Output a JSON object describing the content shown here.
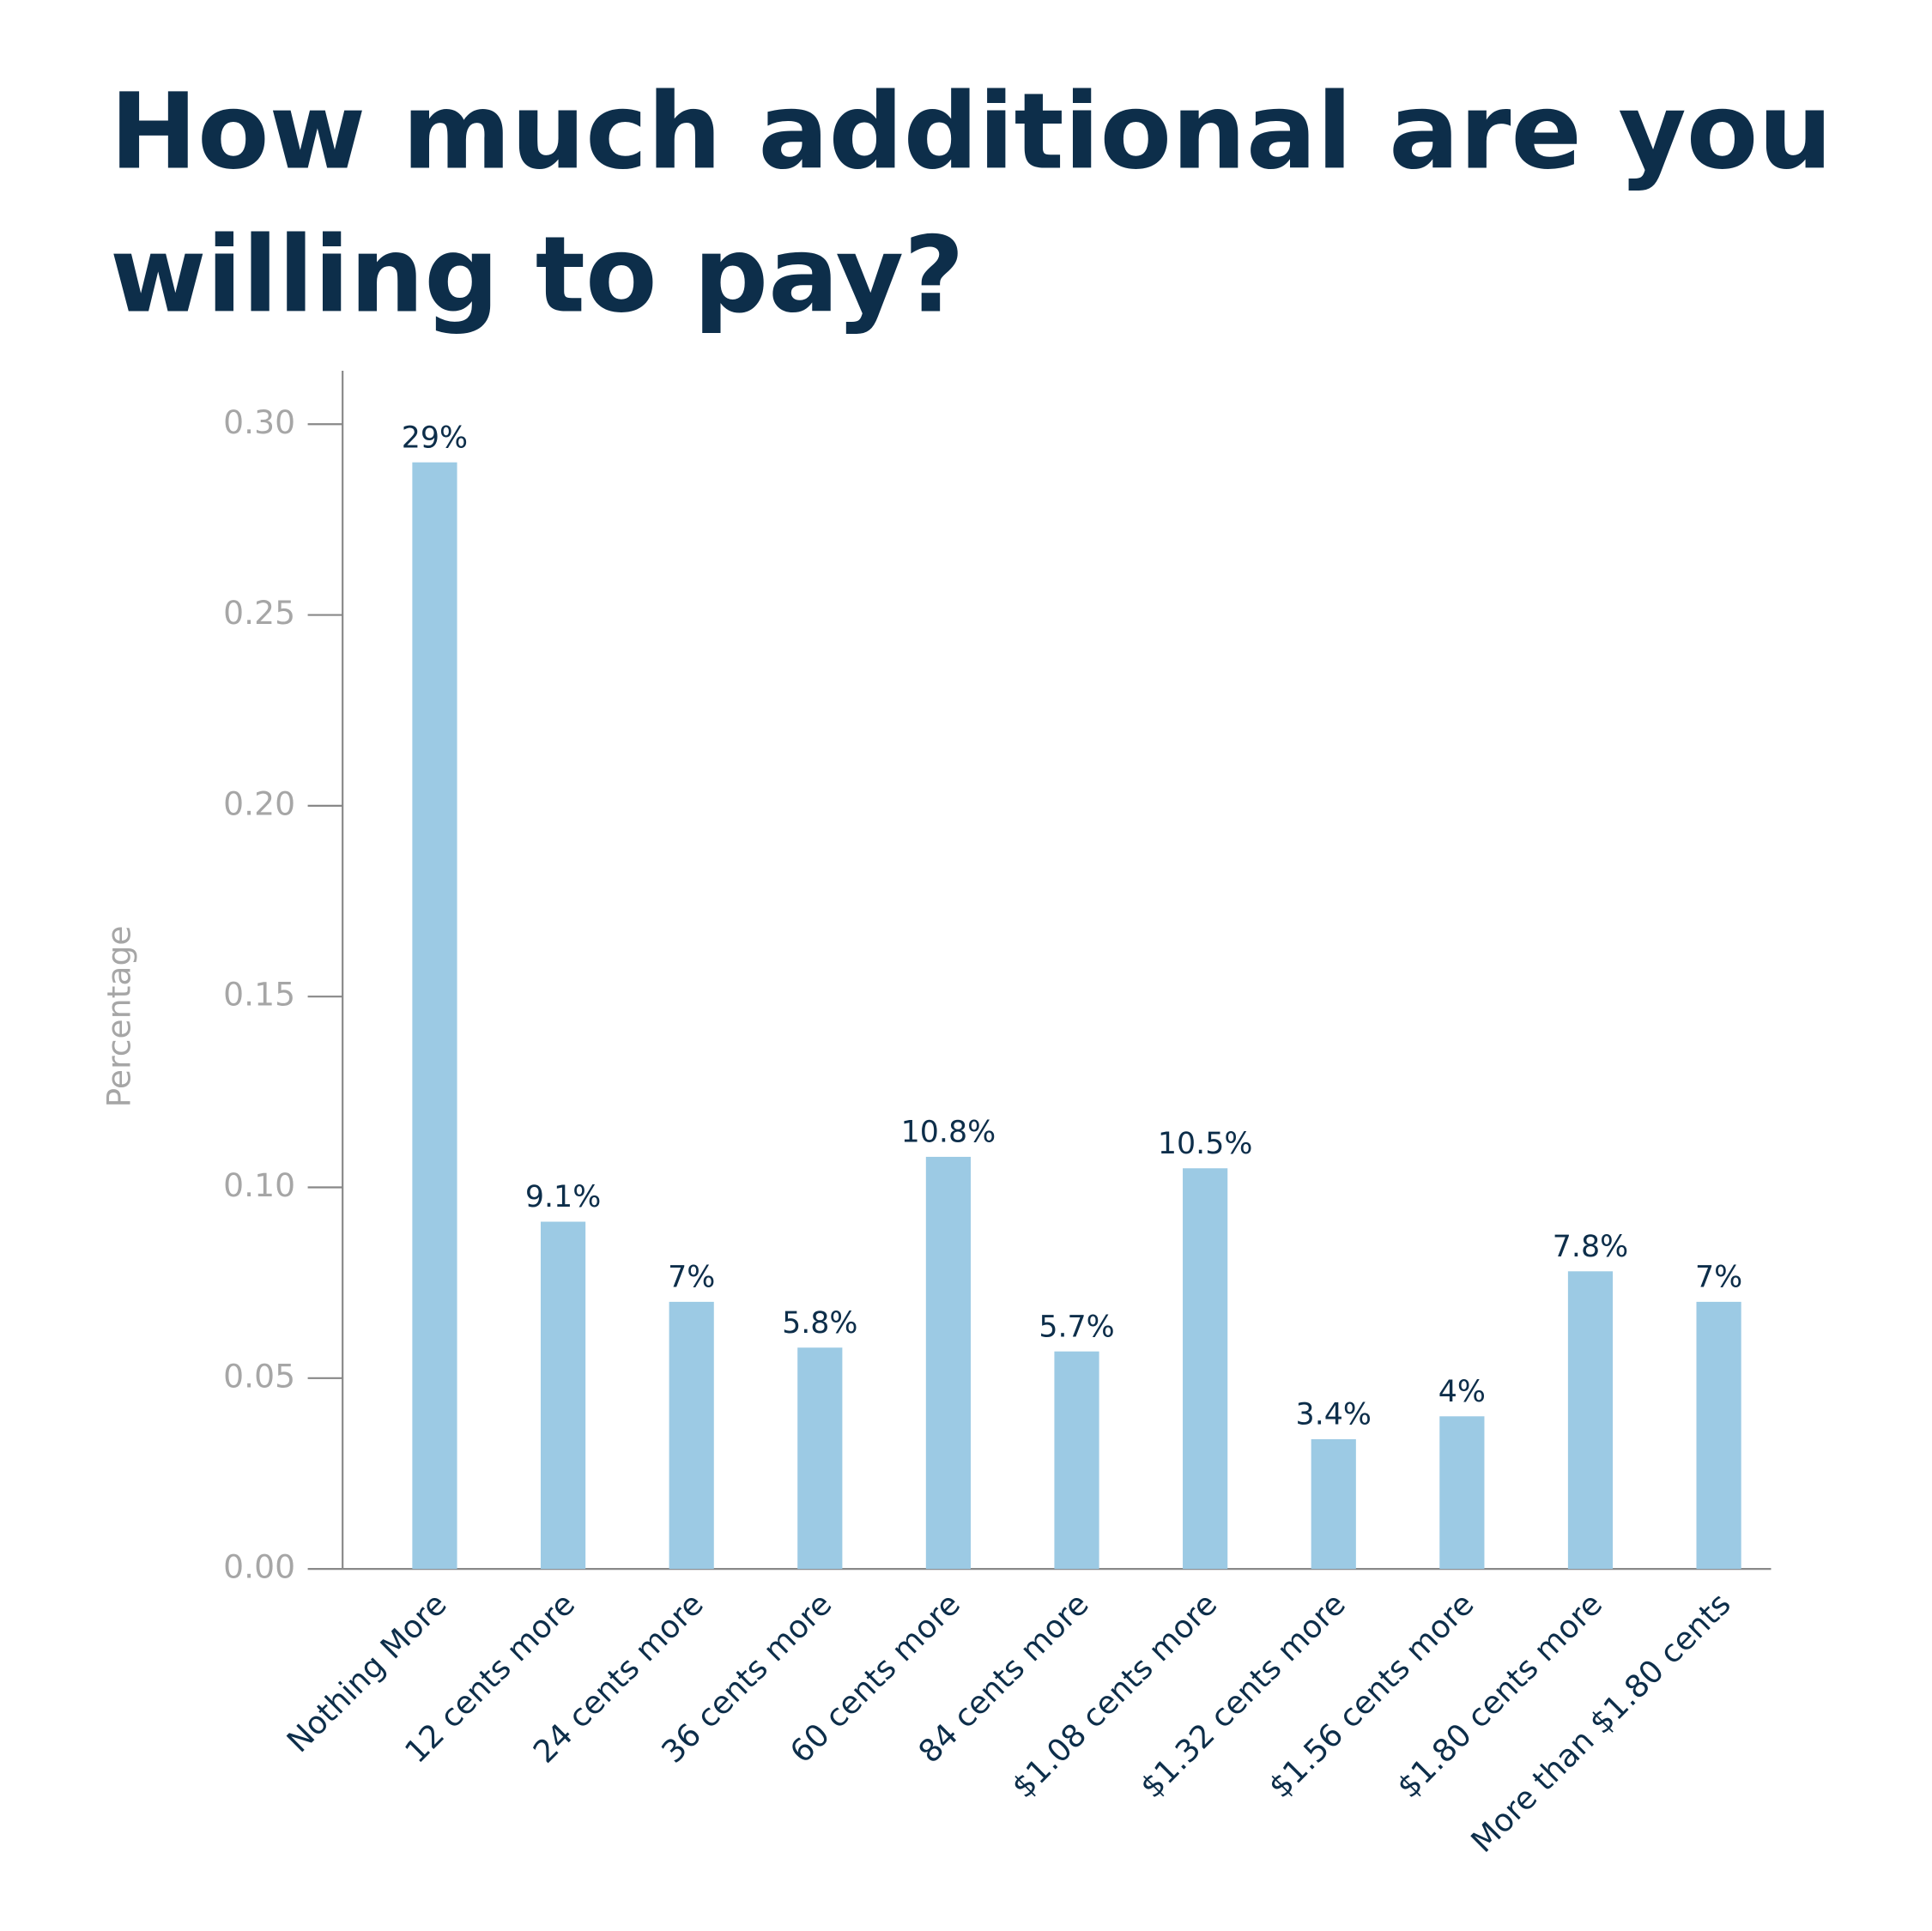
{
  "chart_data": {
    "type": "bar",
    "title": [
      "How much additional are you",
      "willing to pay?"
    ],
    "y_label": "Percentage",
    "categories": [
      "Nothing More",
      "12 cents more",
      "24 cents more",
      "36 cents more",
      "60 cents more",
      "84 cents more",
      "$1.08 cents more",
      "$1.32 cents more",
      "$1.56 cents more",
      "$1.80 cents more",
      "More than $1.80 cents"
    ],
    "values": [
      0.29,
      0.091,
      0.07,
      0.058,
      0.108,
      0.057,
      0.105,
      0.034,
      0.04,
      0.078,
      0.07
    ],
    "value_labels": [
      "29%",
      "9.1%",
      "7%",
      "5.8%",
      "10.8%",
      "5.7%",
      "10.5%",
      "3.4%",
      "4%",
      "7.8%",
      "7%"
    ],
    "color": "#9ccae4",
    "ylim": [
      0,
      0.314
    ],
    "yticks": [
      {
        "value": 0,
        "label": "0.00"
      },
      {
        "value": 0.05,
        "label": "0.05"
      },
      {
        "value": 0.1,
        "label": "0.10"
      },
      {
        "value": 0.15,
        "label": "0.15"
      },
      {
        "value": 0.2,
        "label": "0.20"
      },
      {
        "value": 0.25,
        "label": "0.25"
      },
      {
        "value": 0.3,
        "label": "0.30"
      }
    ]
  }
}
